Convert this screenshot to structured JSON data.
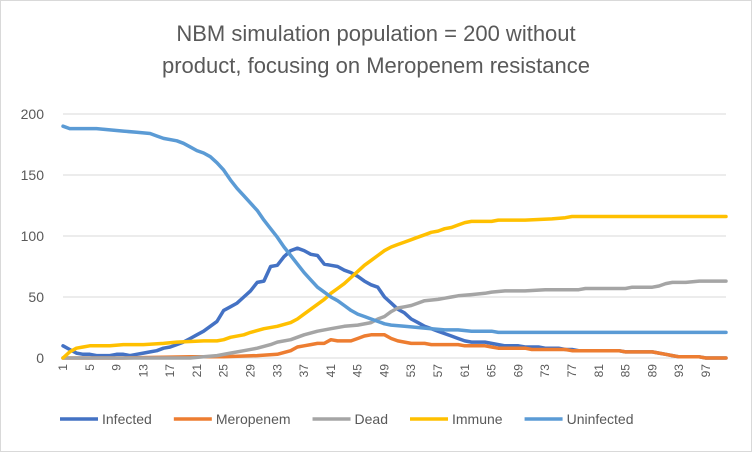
{
  "chart_data": {
    "type": "line",
    "title_lines": [
      "NBM simulation population = 200 without",
      "product, focusing on Meropenem resistance"
    ],
    "xlabel": "",
    "ylabel": "",
    "x_start": 1,
    "x_end": 100,
    "x_tick_labels": [
      "1",
      "5",
      "9",
      "13",
      "17",
      "21",
      "25",
      "29",
      "33",
      "37",
      "41",
      "45",
      "49",
      "53",
      "57",
      "61",
      "65",
      "69",
      "73",
      "77",
      "81",
      "85",
      "89",
      "93",
      "97"
    ],
    "ylim": [
      0,
      200
    ],
    "y_ticks": [
      0,
      50,
      100,
      150,
      200
    ],
    "grid": "horizontal",
    "legend_position": "bottom",
    "series": [
      {
        "name": "Infected",
        "color": "#4472C4",
        "points": [
          [
            1,
            10
          ],
          [
            2,
            7
          ],
          [
            3,
            4
          ],
          [
            4,
            3
          ],
          [
            5,
            3
          ],
          [
            6,
            2
          ],
          [
            7,
            2
          ],
          [
            8,
            2
          ],
          [
            9,
            3
          ],
          [
            10,
            3
          ],
          [
            11,
            2
          ],
          [
            12,
            3
          ],
          [
            13,
            4
          ],
          [
            14,
            5
          ],
          [
            15,
            6
          ],
          [
            16,
            8
          ],
          [
            17,
            9
          ],
          [
            18,
            11
          ],
          [
            19,
            13
          ],
          [
            20,
            16
          ],
          [
            21,
            19
          ],
          [
            22,
            22
          ],
          [
            23,
            26
          ],
          [
            24,
            30
          ],
          [
            25,
            39
          ],
          [
            26,
            42
          ],
          [
            27,
            45
          ],
          [
            28,
            50
          ],
          [
            29,
            55
          ],
          [
            30,
            62
          ],
          [
            31,
            63
          ],
          [
            32,
            75
          ],
          [
            33,
            76
          ],
          [
            34,
            83
          ],
          [
            35,
            88
          ],
          [
            36,
            90
          ],
          [
            37,
            88
          ],
          [
            38,
            85
          ],
          [
            39,
            84
          ],
          [
            40,
            77
          ],
          [
            41,
            76
          ],
          [
            42,
            75
          ],
          [
            43,
            72
          ],
          [
            44,
            70
          ],
          [
            45,
            67
          ],
          [
            46,
            63
          ],
          [
            47,
            60
          ],
          [
            48,
            58
          ],
          [
            49,
            50
          ],
          [
            50,
            45
          ],
          [
            51,
            40
          ],
          [
            52,
            37
          ],
          [
            53,
            32
          ],
          [
            54,
            29
          ],
          [
            55,
            26
          ],
          [
            56,
            24
          ],
          [
            57,
            22
          ],
          [
            58,
            20
          ],
          [
            59,
            18
          ],
          [
            60,
            16
          ],
          [
            61,
            14
          ],
          [
            62,
            13
          ],
          [
            63,
            13
          ],
          [
            64,
            13
          ],
          [
            65,
            12
          ],
          [
            66,
            11
          ],
          [
            67,
            10
          ],
          [
            68,
            10
          ],
          [
            69,
            10
          ],
          [
            70,
            9
          ],
          [
            71,
            9
          ],
          [
            72,
            9
          ],
          [
            73,
            8
          ],
          [
            74,
            8
          ],
          [
            75,
            8
          ],
          [
            76,
            7
          ],
          [
            77,
            7
          ],
          [
            78,
            6
          ],
          [
            79,
            6
          ],
          [
            80,
            6
          ],
          [
            81,
            6
          ],
          [
            82,
            6
          ],
          [
            83,
            6
          ],
          [
            84,
            6
          ],
          [
            85,
            5
          ],
          [
            86,
            5
          ],
          [
            87,
            5
          ],
          [
            88,
            5
          ],
          [
            89,
            5
          ],
          [
            90,
            4
          ],
          [
            91,
            3
          ],
          [
            92,
            2
          ],
          [
            93,
            1
          ],
          [
            94,
            1
          ],
          [
            95,
            1
          ],
          [
            96,
            1
          ],
          [
            97,
            0
          ],
          [
            98,
            0
          ],
          [
            99,
            0
          ],
          [
            100,
            0
          ]
        ]
      },
      {
        "name": "Meropenem",
        "color": "#ED7D31",
        "points": [
          [
            1,
            0
          ],
          [
            10,
            0
          ],
          [
            20,
            1
          ],
          [
            25,
            1
          ],
          [
            30,
            2
          ],
          [
            33,
            3
          ],
          [
            35,
            6
          ],
          [
            36,
            9
          ],
          [
            37,
            10
          ],
          [
            38,
            11
          ],
          [
            39,
            12
          ],
          [
            40,
            12
          ],
          [
            41,
            15
          ],
          [
            42,
            14
          ],
          [
            43,
            14
          ],
          [
            44,
            14
          ],
          [
            45,
            16
          ],
          [
            46,
            18
          ],
          [
            47,
            19
          ],
          [
            48,
            19
          ],
          [
            49,
            19
          ],
          [
            50,
            16
          ],
          [
            51,
            14
          ],
          [
            52,
            13
          ],
          [
            53,
            12
          ],
          [
            54,
            12
          ],
          [
            55,
            12
          ],
          [
            56,
            11
          ],
          [
            57,
            11
          ],
          [
            58,
            11
          ],
          [
            59,
            11
          ],
          [
            60,
            11
          ],
          [
            61,
            10
          ],
          [
            62,
            10
          ],
          [
            63,
            10
          ],
          [
            64,
            10
          ],
          [
            65,
            9
          ],
          [
            66,
            8
          ],
          [
            67,
            8
          ],
          [
            68,
            8
          ],
          [
            69,
            8
          ],
          [
            70,
            8
          ],
          [
            71,
            7
          ],
          [
            72,
            7
          ],
          [
            73,
            7
          ],
          [
            74,
            7
          ],
          [
            75,
            7
          ],
          [
            76,
            7
          ],
          [
            77,
            6
          ],
          [
            78,
            6
          ],
          [
            79,
            6
          ],
          [
            80,
            6
          ],
          [
            81,
            6
          ],
          [
            82,
            6
          ],
          [
            83,
            6
          ],
          [
            84,
            6
          ],
          [
            85,
            5
          ],
          [
            86,
            5
          ],
          [
            87,
            5
          ],
          [
            88,
            5
          ],
          [
            89,
            5
          ],
          [
            90,
            4
          ],
          [
            91,
            3
          ],
          [
            92,
            2
          ],
          [
            93,
            1
          ],
          [
            94,
            1
          ],
          [
            95,
            1
          ],
          [
            96,
            1
          ],
          [
            97,
            0
          ],
          [
            100,
            0
          ]
        ]
      },
      {
        "name": "Dead",
        "color": "#A5A5A5",
        "points": [
          [
            1,
            0
          ],
          [
            20,
            0
          ],
          [
            22,
            1
          ],
          [
            24,
            2
          ],
          [
            26,
            4
          ],
          [
            28,
            6
          ],
          [
            30,
            8
          ],
          [
            32,
            11
          ],
          [
            33,
            13
          ],
          [
            35,
            15
          ],
          [
            37,
            19
          ],
          [
            39,
            22
          ],
          [
            41,
            24
          ],
          [
            43,
            26
          ],
          [
            45,
            27
          ],
          [
            47,
            29
          ],
          [
            48,
            32
          ],
          [
            49,
            34
          ],
          [
            50,
            38
          ],
          [
            51,
            41
          ],
          [
            52,
            42
          ],
          [
            53,
            43
          ],
          [
            54,
            45
          ],
          [
            55,
            47
          ],
          [
            57,
            48
          ],
          [
            58,
            49
          ],
          [
            59,
            50
          ],
          [
            60,
            51
          ],
          [
            62,
            52
          ],
          [
            64,
            53
          ],
          [
            65,
            54
          ],
          [
            67,
            55
          ],
          [
            70,
            55
          ],
          [
            73,
            56
          ],
          [
            78,
            56
          ],
          [
            79,
            57
          ],
          [
            85,
            57
          ],
          [
            86,
            58
          ],
          [
            89,
            58
          ],
          [
            90,
            59
          ],
          [
            91,
            61
          ],
          [
            92,
            62
          ],
          [
            94,
            62
          ],
          [
            96,
            63
          ],
          [
            100,
            63
          ]
        ]
      },
      {
        "name": "Immune",
        "color": "#FFC000",
        "points": [
          [
            1,
            0
          ],
          [
            2,
            5
          ],
          [
            3,
            8
          ],
          [
            4,
            9
          ],
          [
            5,
            10
          ],
          [
            6,
            10
          ],
          [
            8,
            10
          ],
          [
            10,
            11
          ],
          [
            13,
            11
          ],
          [
            16,
            12
          ],
          [
            18,
            13
          ],
          [
            22,
            14
          ],
          [
            24,
            14
          ],
          [
            25,
            15
          ],
          [
            26,
            17
          ],
          [
            28,
            19
          ],
          [
            29,
            21
          ],
          [
            31,
            24
          ],
          [
            33,
            26
          ],
          [
            35,
            29
          ],
          [
            36,
            32
          ],
          [
            37,
            36
          ],
          [
            38,
            40
          ],
          [
            39,
            44
          ],
          [
            40,
            48
          ],
          [
            41,
            53
          ],
          [
            42,
            57
          ],
          [
            43,
            61
          ],
          [
            44,
            66
          ],
          [
            45,
            71
          ],
          [
            46,
            76
          ],
          [
            47,
            80
          ],
          [
            48,
            84
          ],
          [
            49,
            88
          ],
          [
            50,
            91
          ],
          [
            51,
            93
          ],
          [
            52,
            95
          ],
          [
            53,
            97
          ],
          [
            54,
            99
          ],
          [
            55,
            101
          ],
          [
            56,
            103
          ],
          [
            57,
            104
          ],
          [
            58,
            106
          ],
          [
            59,
            107
          ],
          [
            60,
            109
          ],
          [
            61,
            111
          ],
          [
            62,
            112
          ],
          [
            65,
            112
          ],
          [
            66,
            113
          ],
          [
            70,
            113
          ],
          [
            74,
            114
          ],
          [
            76,
            115
          ],
          [
            77,
            116
          ],
          [
            100,
            116
          ]
        ]
      },
      {
        "name": "Uninfected",
        "color": "#5B9BD5",
        "points": [
          [
            1,
            190
          ],
          [
            2,
            188
          ],
          [
            4,
            188
          ],
          [
            6,
            188
          ],
          [
            8,
            187
          ],
          [
            10,
            186
          ],
          [
            12,
            185
          ],
          [
            14,
            184
          ],
          [
            15,
            182
          ],
          [
            16,
            180
          ],
          [
            18,
            178
          ],
          [
            19,
            176
          ],
          [
            20,
            173
          ],
          [
            21,
            170
          ],
          [
            22,
            168
          ],
          [
            23,
            165
          ],
          [
            24,
            160
          ],
          [
            25,
            154
          ],
          [
            26,
            146
          ],
          [
            27,
            139
          ],
          [
            28,
            133
          ],
          [
            29,
            127
          ],
          [
            30,
            121
          ],
          [
            31,
            113
          ],
          [
            32,
            106
          ],
          [
            33,
            99
          ],
          [
            34,
            91
          ],
          [
            35,
            84
          ],
          [
            36,
            77
          ],
          [
            37,
            70
          ],
          [
            38,
            64
          ],
          [
            39,
            58
          ],
          [
            40,
            54
          ],
          [
            41,
            50
          ],
          [
            42,
            47
          ],
          [
            43,
            43
          ],
          [
            44,
            39
          ],
          [
            45,
            36
          ],
          [
            46,
            34
          ],
          [
            47,
            32
          ],
          [
            48,
            30
          ],
          [
            49,
            28
          ],
          [
            50,
            27
          ],
          [
            52,
            26
          ],
          [
            54,
            25
          ],
          [
            56,
            24
          ],
          [
            58,
            23
          ],
          [
            60,
            23
          ],
          [
            62,
            22
          ],
          [
            64,
            22
          ],
          [
            65,
            22
          ],
          [
            66,
            21
          ],
          [
            100,
            21
          ]
        ]
      }
    ]
  }
}
